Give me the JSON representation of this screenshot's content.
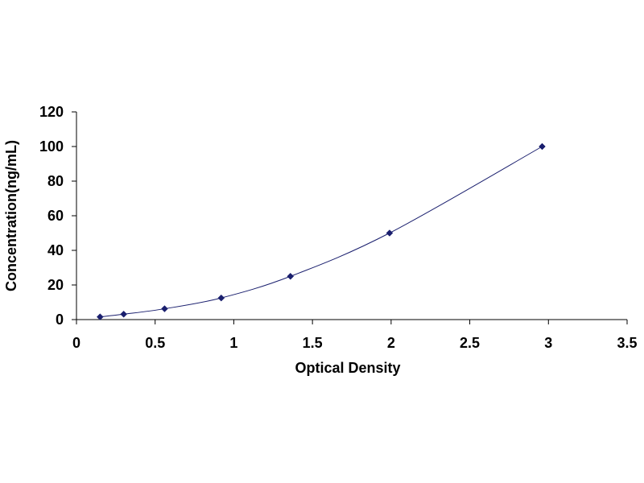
{
  "chart_data": {
    "type": "scatter",
    "title": "",
    "xlabel": "Optical Density",
    "ylabel": "Concentration(ng/mL)",
    "xlim": [
      0,
      3.5
    ],
    "ylim": [
      0,
      120
    ],
    "xticks": [
      "0",
      "0.5",
      "1",
      "1.5",
      "2",
      "2.5",
      "3",
      "3.5"
    ],
    "yticks": [
      "0",
      "20",
      "40",
      "60",
      "80",
      "100",
      "120"
    ],
    "grid": false,
    "legend": "none",
    "trendline": "smooth curve",
    "colors": {
      "marker": "#1a1f6e",
      "line": "#1a1f6e",
      "axis": "#000000"
    },
    "series": [
      {
        "x": [
          0.15,
          0.3,
          0.56,
          0.92,
          1.36,
          1.99,
          2.96
        ],
        "y": [
          1.56,
          3.12,
          6.25,
          12.5,
          25,
          50,
          100
        ]
      }
    ]
  }
}
